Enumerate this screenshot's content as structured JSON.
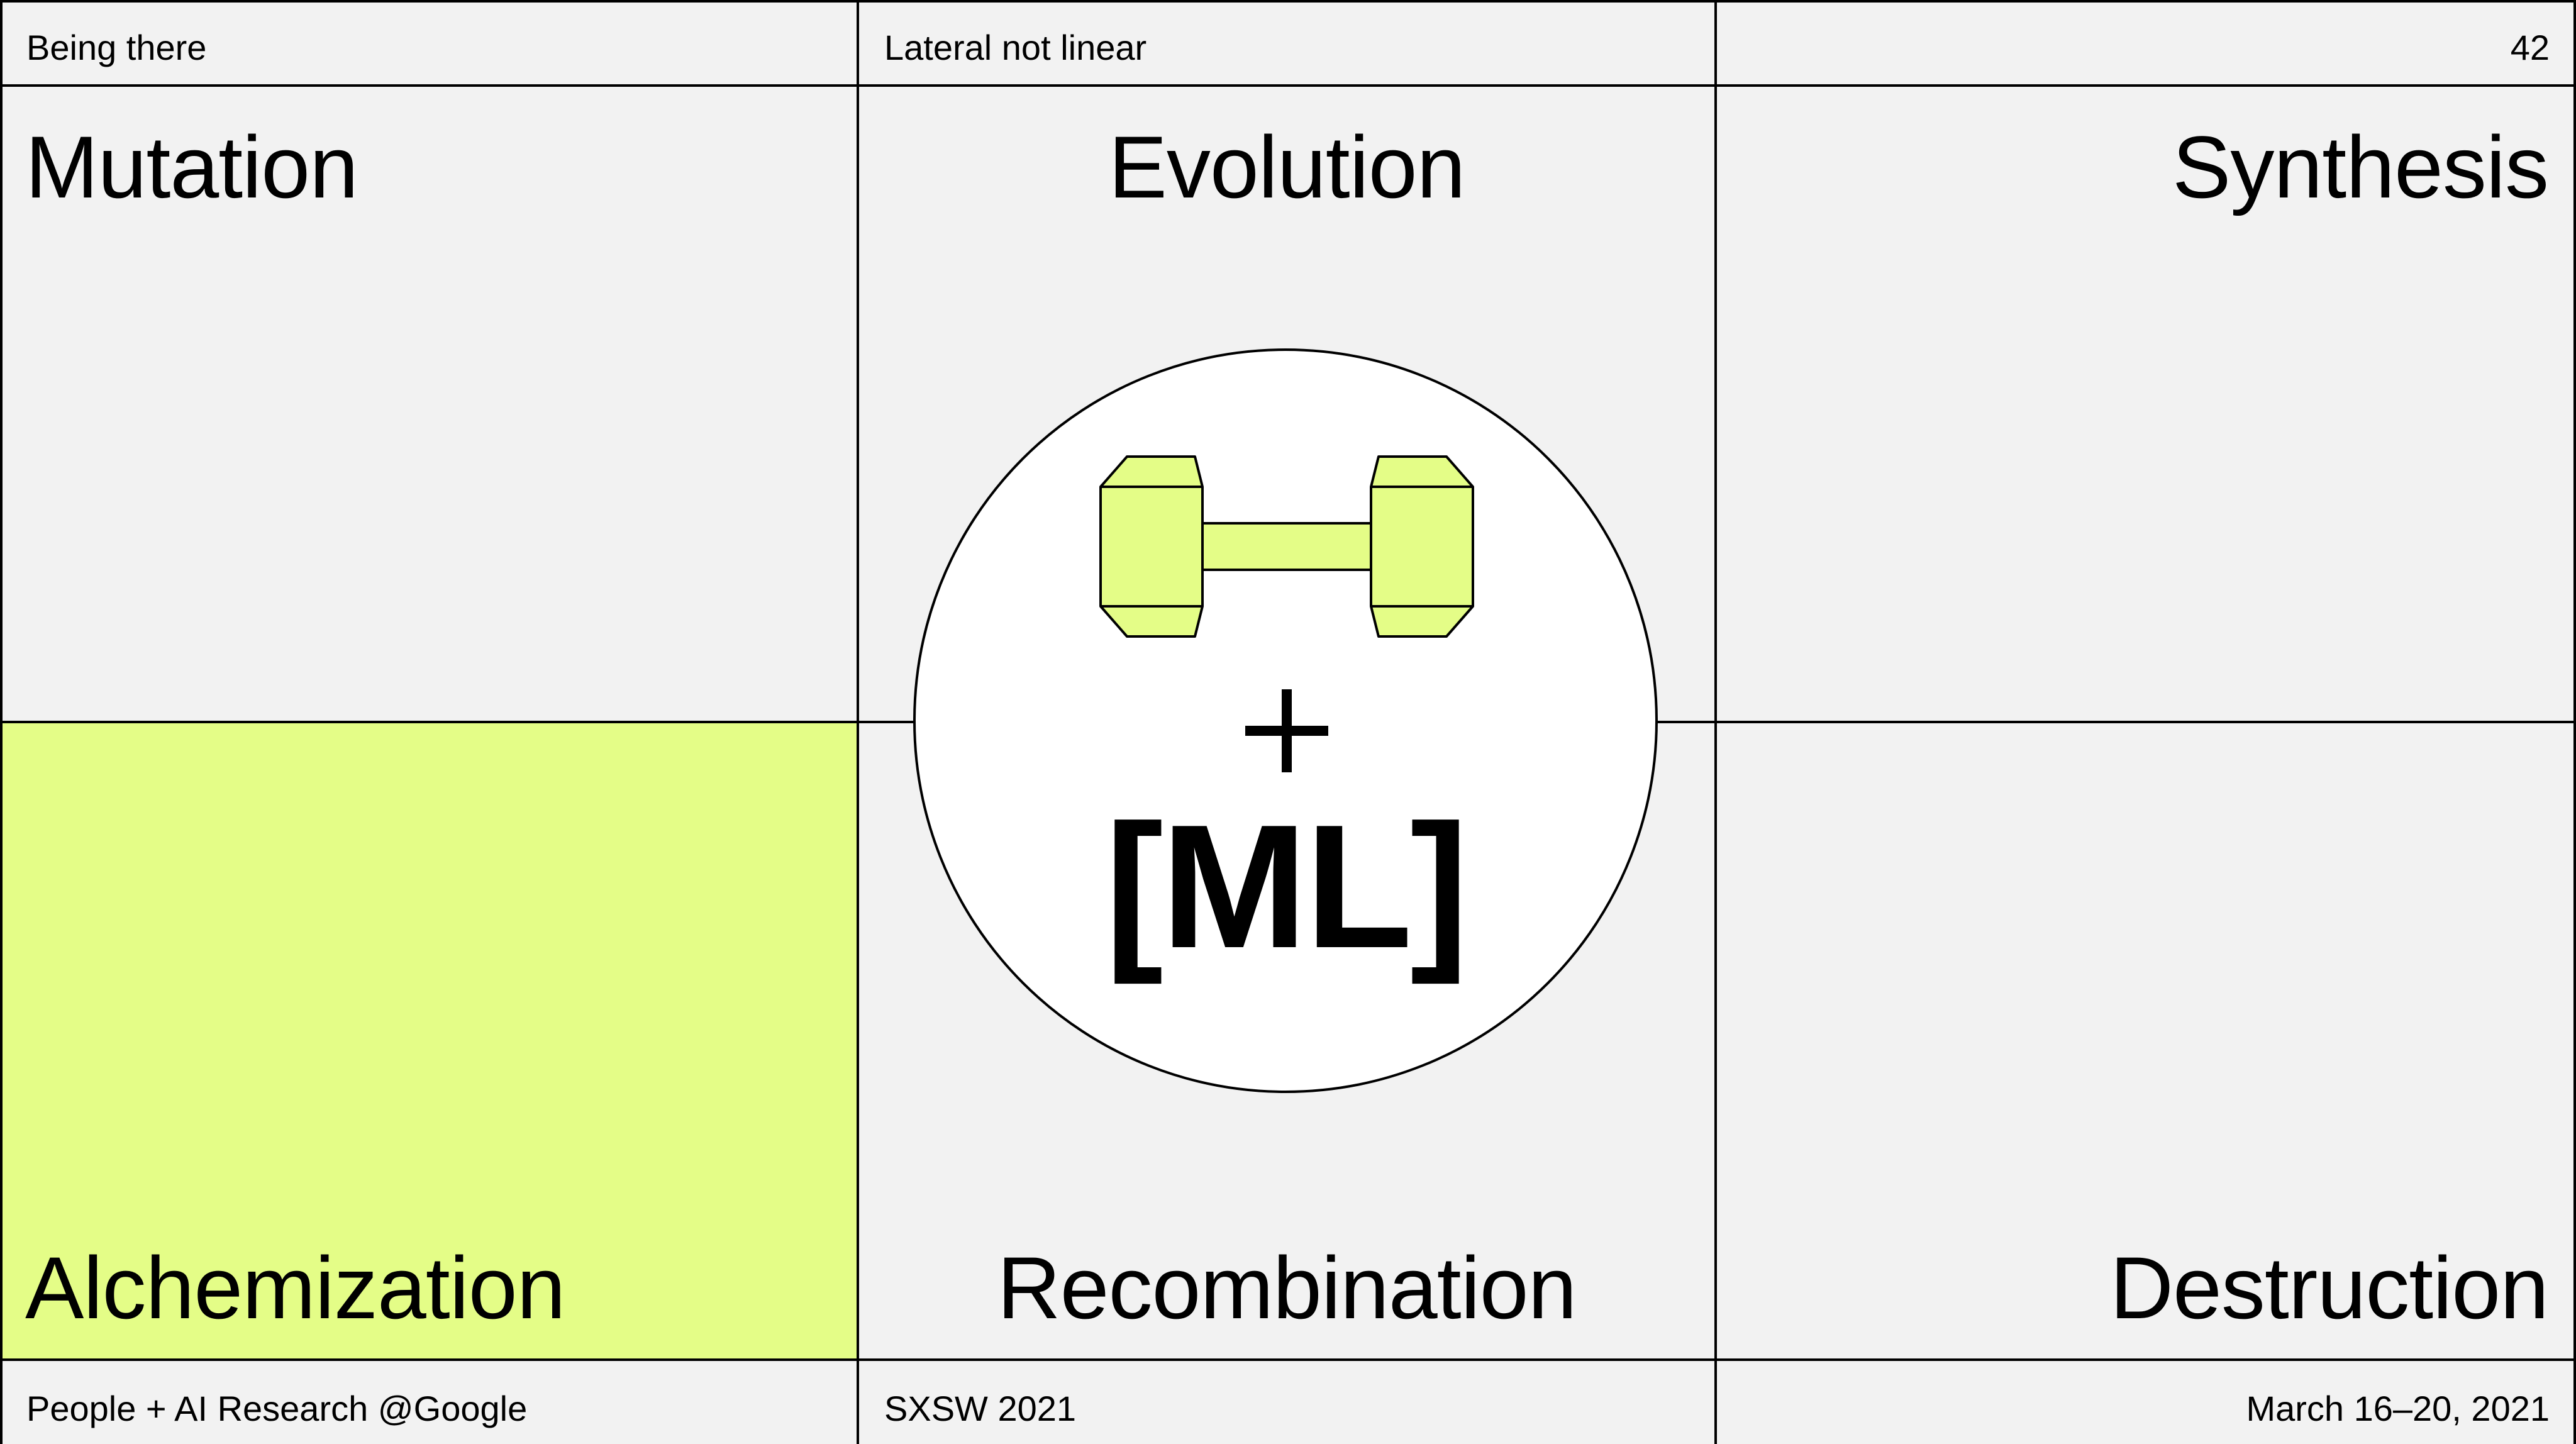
{
  "header": {
    "left": "Being there",
    "middle": "Lateral not linear",
    "page_number": "42"
  },
  "quadrants": {
    "top_left": "Mutation",
    "top_center": "Evolution",
    "top_right": "Synthesis",
    "bottom_left": "Alchemization",
    "bottom_center": "Recombination",
    "bottom_right": "Destruction"
  },
  "center": {
    "icon": "dumbbell-icon",
    "plus": "+",
    "ml": "[ML]"
  },
  "footer": {
    "left": "People + AI Research @Google",
    "middle": "SXSW 2021",
    "right": "March 16–20, 2021"
  },
  "colors": {
    "background": "#f2f2f2",
    "accent": "#e4fd87",
    "line": "#000000",
    "circle": "#ffffff"
  }
}
